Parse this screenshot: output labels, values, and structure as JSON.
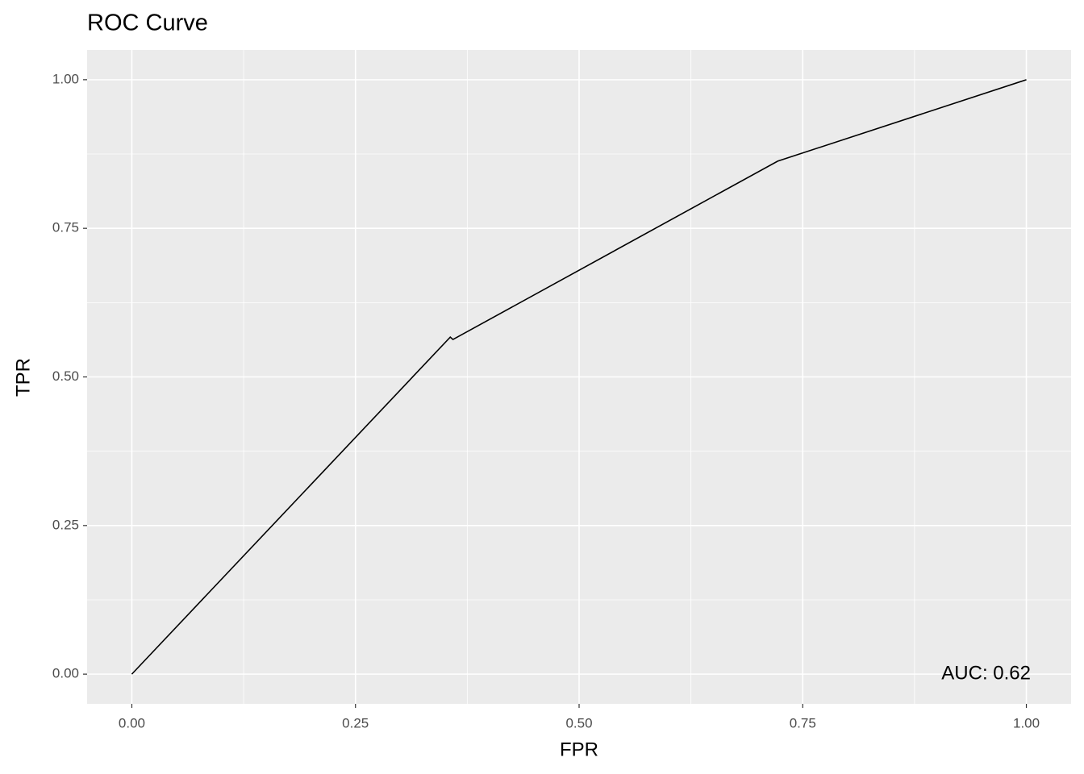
{
  "chart_data": {
    "type": "line",
    "title": "ROC Curve",
    "xlabel": "FPR",
    "ylabel": "TPR",
    "x": [
      0,
      0.356,
      0.359,
      0.722,
      1
    ],
    "series": [
      {
        "color": "#000000",
        "values": [
          0,
          0.567,
          0.563,
          0.863,
          1
        ]
      }
    ],
    "xlim": [
      -0.05,
      1.05
    ],
    "ylim": [
      -0.05,
      1.05
    ],
    "xticks": [
      {
        "value": 0,
        "label": "0.00"
      },
      {
        "value": 0.25,
        "label": "0.25"
      },
      {
        "value": 0.5,
        "label": "0.50"
      },
      {
        "value": 0.75,
        "label": "0.75"
      },
      {
        "value": 1,
        "label": "1.00"
      }
    ],
    "yticks": [
      {
        "value": 0,
        "label": "0.00"
      },
      {
        "value": 0.25,
        "label": "0.25"
      },
      {
        "value": 0.5,
        "label": "0.50"
      },
      {
        "value": 0.75,
        "label": "0.75"
      },
      {
        "value": 1,
        "label": "1.00"
      }
    ],
    "xminor": [
      0.125,
      0.375,
      0.625,
      0.875
    ],
    "yminor": [
      0.125,
      0.375,
      0.625,
      0.875
    ],
    "grid": true,
    "annotation": "AUC:  0.62"
  }
}
